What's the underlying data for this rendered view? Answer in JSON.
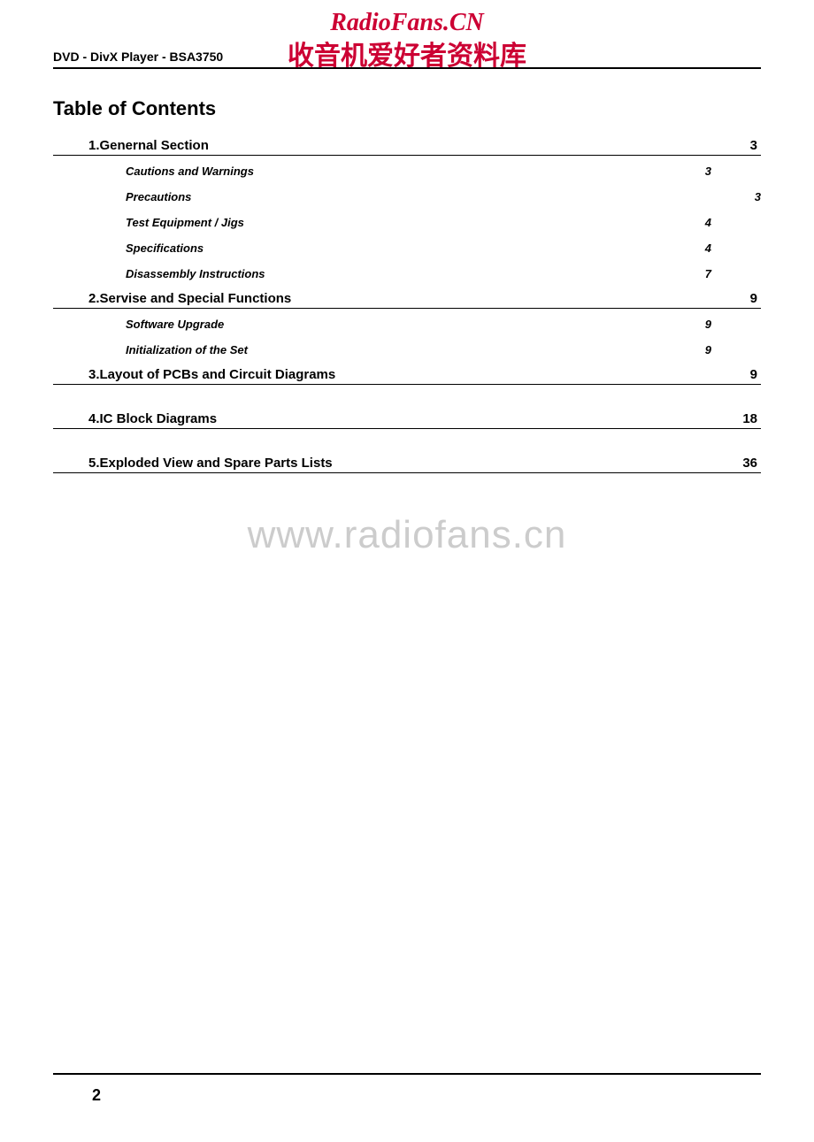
{
  "watermark": {
    "top_en": "RadioFans.CN",
    "top_cn": "收音机爱好者资料库",
    "mid": "www.radiofans.cn",
    "color": "#cc0033",
    "mid_color": "#cccccc"
  },
  "header": "DVD - DivX Player - BSA3750",
  "toc_title": "Table of Contents",
  "sections": [
    {
      "title": "1.Genernal Section",
      "page": "3",
      "items": [
        {
          "title": "Cautions and Warnings",
          "page": "3",
          "outlier": false
        },
        {
          "title": "Precautions",
          "page": "3",
          "outlier": true
        },
        {
          "title": "Test Equipment / Jigs",
          "page": "4",
          "outlier": false
        },
        {
          "title": "Specifications",
          "page": "4",
          "outlier": false
        },
        {
          "title": "Disassembly Instructions",
          "page": "7",
          "outlier": false
        }
      ]
    },
    {
      "title": "2.Servise and Special Functions",
      "page": "9",
      "items": [
        {
          "title": "Software Upgrade",
          "page": "9",
          "outlier": false
        },
        {
          "title": "Initialization of the Set",
          "page": "9",
          "outlier": false
        }
      ]
    },
    {
      "title": "3.Layout of PCBs and Circuit Diagrams",
      "page": "9",
      "items": []
    },
    {
      "title": "4.IC Block Diagrams",
      "page": "18",
      "items": []
    },
    {
      "title": "5.Exploded View and Spare Parts Lists",
      "page": "36",
      "items": []
    }
  ],
  "page_number": "2",
  "colors": {
    "text": "#000000",
    "background": "#ffffff",
    "rule": "#000000"
  }
}
